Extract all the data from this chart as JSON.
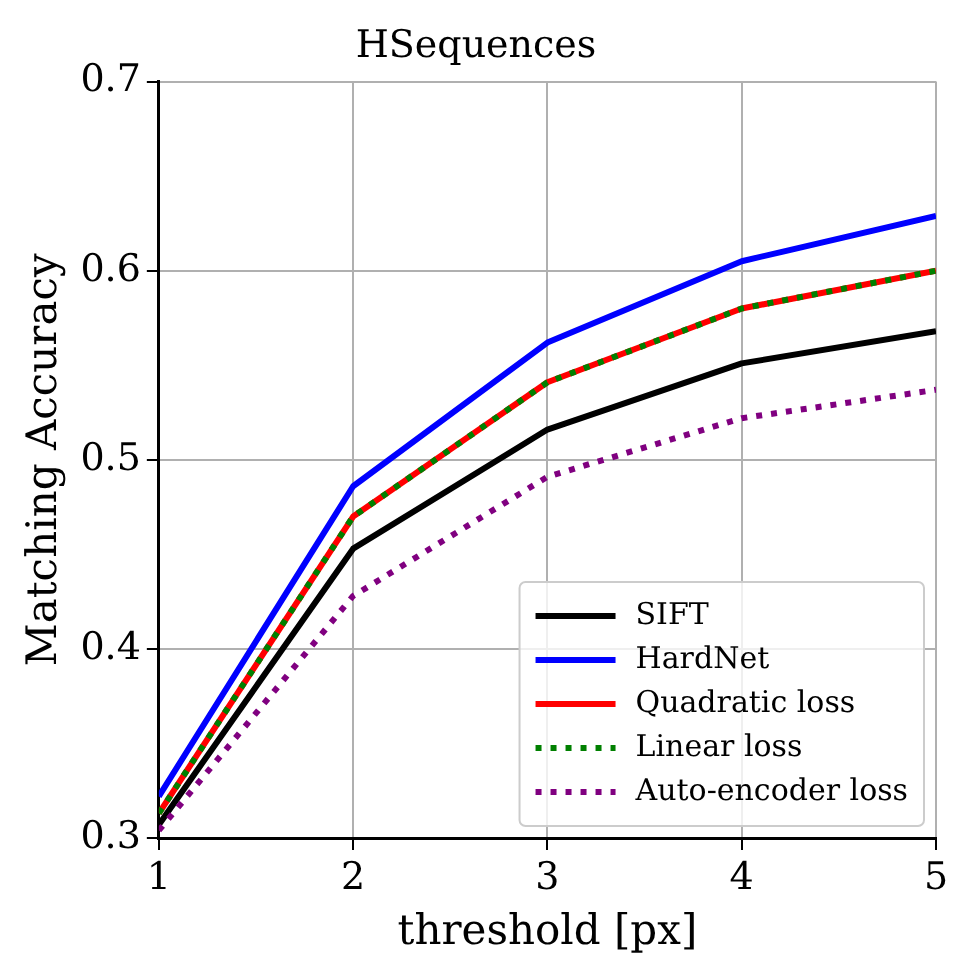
{
  "chart_data": {
    "type": "line",
    "title": "HSequences",
    "xlabel": "threshold [px]",
    "ylabel": "Matching Accuracy",
    "x": [
      1,
      2,
      3,
      4,
      5
    ],
    "xlim": [
      1,
      5
    ],
    "xticks": [
      1,
      2,
      3,
      4,
      5
    ],
    "ylim": [
      0.3,
      0.7
    ],
    "yticks": [
      0.3,
      0.4,
      0.5,
      0.6,
      0.7
    ],
    "grid": true,
    "legend": "bottom right",
    "marker": "none",
    "series": [
      {
        "name": "SIFT",
        "color": "#000000",
        "line_style": "solid",
        "values": [
          0.307,
          0.453,
          0.516,
          0.551,
          0.568
        ]
      },
      {
        "name": "HardNet",
        "color": "#0000ff",
        "line_style": "solid",
        "values": [
          0.322,
          0.486,
          0.562,
          0.605,
          0.629
        ]
      },
      {
        "name": "Quadratic loss",
        "color": "#ff0000",
        "line_style": "solid",
        "values": [
          0.313,
          0.47,
          0.541,
          0.58,
          0.6
        ]
      },
      {
        "name": "Linear loss",
        "color": "#008000",
        "line_style": "dotted",
        "values": [
          0.313,
          0.47,
          0.541,
          0.58,
          0.6
        ]
      },
      {
        "name": "Auto-encoder loss",
        "color": "#800080",
        "line_style": "dotted",
        "values": [
          0.304,
          0.428,
          0.491,
          0.522,
          0.537
        ]
      }
    ]
  }
}
